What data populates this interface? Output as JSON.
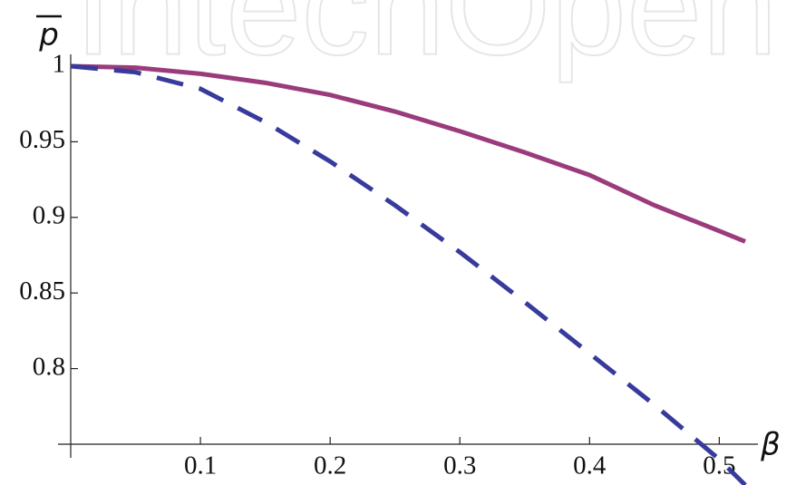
{
  "chart_data": {
    "type": "line",
    "watermark": "IntechOpen",
    "ylabel": "p",
    "xlabel": "β",
    "x": [
      0,
      0.05,
      0.1,
      0.15,
      0.2,
      0.25,
      0.3,
      0.35,
      0.4,
      0.45,
      0.5,
      0.52
    ],
    "series": [
      {
        "color": "#9a3b7c",
        "style": "solid",
        "values": [
          1,
          0.999,
          0.995,
          0.989,
          0.981,
          0.97,
          0.957,
          0.943,
          0.928,
          0.908,
          0.891,
          0.884
        ]
      },
      {
        "color": "#363b9c",
        "style": "dashed",
        "values": [
          1,
          0.996,
          0.985,
          0.963,
          0.937,
          0.908,
          0.877,
          0.844,
          0.81,
          0.776,
          0.74,
          0.723
        ]
      }
    ],
    "xlim": [
      0,
      0.52
    ],
    "ylim": [
      0.75,
      1
    ],
    "xticks": [
      0.1,
      0.2,
      0.3,
      0.4,
      0.5
    ],
    "yticks": [
      0.8,
      0.85,
      0.9,
      0.95,
      1
    ]
  }
}
